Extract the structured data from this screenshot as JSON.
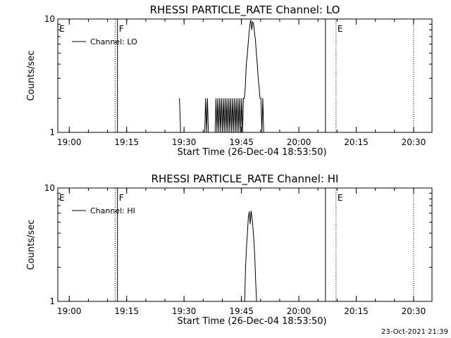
{
  "chart_data": [
    {
      "type": "line",
      "title": "RHESSI PARTICLE_RATE Channel: LO",
      "xlabel": "Start Time (26-Dec-04 18:53:50)",
      "ylabel": "Counts/sec",
      "y_scale": "log",
      "ylim": [
        1,
        10
      ],
      "y_ticks": [
        "1",
        "10"
      ],
      "xlim_minutes": [
        18.95,
        20.58
      ],
      "x_ticks": [
        {
          "label": "19:00",
          "minute": 19.0
        },
        {
          "label": "19:15",
          "minute": 19.25
        },
        {
          "label": "19:30",
          "minute": 19.5
        },
        {
          "label": "19:45",
          "minute": 19.75
        },
        {
          "label": "20:00",
          "minute": 20.0
        },
        {
          "label": "20:15",
          "minute": 20.25
        },
        {
          "label": "20:30",
          "minute": 20.5
        }
      ],
      "legend": {
        "placement": "top-left",
        "label": "Channel: LO"
      },
      "markers": [
        {
          "label": "E",
          "time_h": 18.95,
          "style": "dotted"
        },
        {
          "label": "F",
          "time_h": 19.21,
          "style": "solid"
        },
        {
          "label": "",
          "time_h": 19.2,
          "style": "dotted"
        },
        {
          "label": "",
          "time_h": 20.116,
          "style": "solid"
        },
        {
          "label": "E",
          "time_h": 20.162,
          "style": "dotted"
        },
        {
          "label": "",
          "time_h": 20.5,
          "style": "dotted"
        }
      ],
      "series": [
        {
          "name": "Channel: LO",
          "segments": [
            [
              [
                19.48,
                2.0
              ],
              [
                19.485,
                1.0
              ]
            ],
            [
              [
                19.59,
                1.0
              ],
              [
                19.594,
                2.0
              ],
              [
                19.598,
                1.0
              ],
              [
                19.602,
                2.0
              ],
              [
                19.606,
                1.0
              ]
            ],
            [
              [
                19.635,
                1.0
              ],
              [
                19.639,
                2.0
              ],
              [
                19.643,
                1.0
              ],
              [
                19.647,
                2.0
              ],
              [
                19.651,
                1.0
              ],
              [
                19.655,
                2.0
              ],
              [
                19.659,
                1.0
              ],
              [
                19.663,
                2.0
              ],
              [
                19.667,
                1.0
              ],
              [
                19.671,
                2.0
              ],
              [
                19.675,
                1.0
              ],
              [
                19.679,
                2.0
              ],
              [
                19.683,
                1.0
              ],
              [
                19.687,
                2.0
              ],
              [
                19.691,
                1.0
              ],
              [
                19.695,
                2.0
              ],
              [
                19.699,
                1.0
              ],
              [
                19.703,
                2.0
              ],
              [
                19.707,
                1.0
              ],
              [
                19.711,
                2.0
              ],
              [
                19.715,
                1.0
              ],
              [
                19.719,
                2.0
              ],
              [
                19.723,
                1.0
              ],
              [
                19.727,
                2.0
              ],
              [
                19.731,
                1.0
              ],
              [
                19.735,
                2.0
              ],
              [
                19.739,
                1.0
              ],
              [
                19.743,
                2.0
              ],
              [
                19.747,
                1.0
              ],
              [
                19.751,
                2.0
              ],
              [
                19.755,
                1.0
              ],
              [
                19.759,
                2.0
              ],
              [
                19.763,
                2.0
              ],
              [
                19.767,
                2.6
              ],
              [
                19.771,
                4.0
              ],
              [
                19.775,
                4.7
              ],
              [
                19.779,
                6.0
              ],
              [
                19.783,
                7.5
              ],
              [
                19.787,
                9.0
              ],
              [
                19.791,
                9.8
              ],
              [
                19.795,
                8.0
              ],
              [
                19.799,
                9.5
              ],
              [
                19.803,
                9.0
              ],
              [
                19.807,
                7.5
              ],
              [
                19.811,
                6.5
              ],
              [
                19.815,
                5.0
              ],
              [
                19.819,
                4.0
              ],
              [
                19.823,
                3.0
              ],
              [
                19.827,
                2.5
              ],
              [
                19.831,
                2.0
              ],
              [
                19.835,
                2.0
              ],
              [
                19.839,
                1.0
              ],
              [
                19.843,
                2.0
              ],
              [
                19.847,
                1.0
              ]
            ]
          ]
        }
      ]
    },
    {
      "type": "line",
      "title": "RHESSI PARTICLE_RATE Channel: HI",
      "xlabel": "Start Time (26-Dec-04 18:53:50)",
      "ylabel": "Counts/sec",
      "y_scale": "log",
      "ylim": [
        1,
        10
      ],
      "y_ticks": [
        "1",
        "10"
      ],
      "xlim_minutes": [
        18.95,
        20.58
      ],
      "x_ticks": [
        {
          "label": "19:00",
          "minute": 19.0
        },
        {
          "label": "19:15",
          "minute": 19.25
        },
        {
          "label": "19:30",
          "minute": 19.5
        },
        {
          "label": "19:45",
          "minute": 19.75
        },
        {
          "label": "20:00",
          "minute": 20.0
        },
        {
          "label": "20:15",
          "minute": 20.25
        },
        {
          "label": "20:30",
          "minute": 20.5
        }
      ],
      "legend": {
        "placement": "top-left",
        "label": "Channel: HI"
      },
      "markers": [
        {
          "label": "E",
          "time_h": 18.95,
          "style": "dotted"
        },
        {
          "label": "F",
          "time_h": 19.21,
          "style": "solid"
        },
        {
          "label": "",
          "time_h": 19.2,
          "style": "dotted"
        },
        {
          "label": "",
          "time_h": 20.116,
          "style": "solid"
        },
        {
          "label": "E",
          "time_h": 20.162,
          "style": "dotted"
        },
        {
          "label": "",
          "time_h": 20.5,
          "style": "dotted"
        }
      ],
      "series": [
        {
          "name": "Channel: HI",
          "segments": [
            [
              [
                19.764,
                1.0
              ],
              [
                19.768,
                2.0
              ],
              [
                19.772,
                3.0
              ],
              [
                19.776,
                4.0
              ],
              [
                19.78,
                5.5
              ],
              [
                19.784,
                6.2
              ],
              [
                19.788,
                4.8
              ],
              [
                19.792,
                6.3
              ],
              [
                19.796,
                5.5
              ],
              [
                19.8,
                4.5
              ],
              [
                19.804,
                3.5
              ],
              [
                19.808,
                2.5
              ],
              [
                19.812,
                1.5
              ],
              [
                19.816,
                1.0
              ]
            ]
          ]
        }
      ]
    }
  ],
  "footer": {
    "timestamp": "23-Oct-2021 21:39"
  }
}
